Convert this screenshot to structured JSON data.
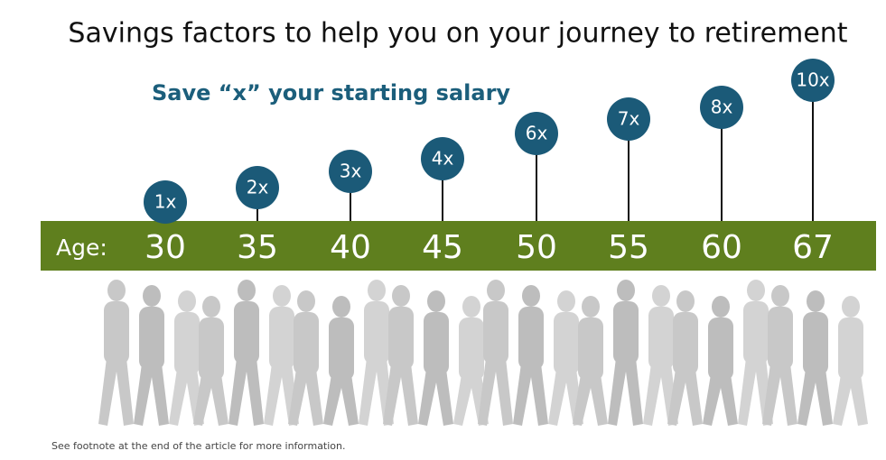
{
  "header": {
    "title": "Savings factors to help you on your journey to retirement",
    "subtitle": "Save “x” your starting salary"
  },
  "timeline": {
    "age_label": "Age:",
    "milestones": [
      {
        "age": "30",
        "factor": "1x"
      },
      {
        "age": "35",
        "factor": "2x"
      },
      {
        "age": "40",
        "factor": "3x"
      },
      {
        "age": "45",
        "factor": "4x"
      },
      {
        "age": "50",
        "factor": "6x"
      },
      {
        "age": "55",
        "factor": "7x"
      },
      {
        "age": "60",
        "factor": "8x"
      },
      {
        "age": "67",
        "factor": "10x"
      }
    ]
  },
  "footnote": "See footnote at the end of the article for more information."
}
